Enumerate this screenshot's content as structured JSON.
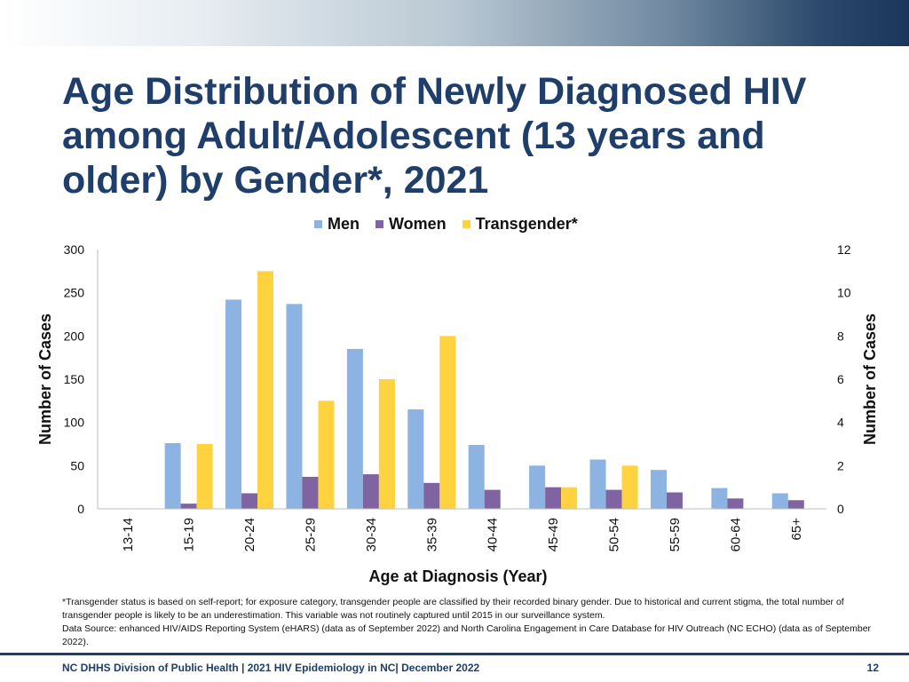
{
  "title": "Age Distribution of Newly Diagnosed HIV among Adult/Adolescent (13 years and older) by Gender*, 2021",
  "footnote": {
    "line1": "*Transgender status is based on self-report; for exposure category, transgender people are classified by their recorded binary gender. Due to historical and current stigma, the total number of transgender people is likely to be an underestimation. This variable was not routinely captured until 2015 in our surveillance system.",
    "line2": "Data Source: enhanced HIV/AIDS Reporting System (eHARS) (data as of September 2022) and North Carolina Engagement in Care Database for HIV Outreach (NC ECHO) (data as of September 2022)."
  },
  "footer": {
    "text": "NC DHHS Division of Public Health | 2021 HIV Epidemiology in NC| December 2022",
    "page_number": "12"
  },
  "colors": {
    "title": "#1f3e69",
    "men": "#8db3e2",
    "women": "#8064a2",
    "transgender": "#ffd33f",
    "axis": "#bfbfbf"
  },
  "chart_data": {
    "type": "bar",
    "title": "",
    "xlabel": "Age at Diagnosis (Year)",
    "ylabel": "Number of Cases",
    "y2label": "Number of Cases",
    "categories": [
      "13-14",
      "15-19",
      "20-24",
      "25-29",
      "30-34",
      "35-39",
      "40-44",
      "45-49",
      "50-54",
      "55-59",
      "60-64",
      "65+"
    ],
    "ylim": [
      0,
      300
    ],
    "y2lim": [
      0,
      12
    ],
    "yticks": [
      "0",
      "50",
      "100",
      "150",
      "200",
      "250",
      "300"
    ],
    "y2ticks": [
      "0",
      "2",
      "4",
      "6",
      "8",
      "10",
      "12"
    ],
    "legend_position": "top-center",
    "series": [
      {
        "name": "Men",
        "axis": "left",
        "values": [
          0,
          76,
          242,
          237,
          185,
          115,
          74,
          50,
          57,
          45,
          24,
          18
        ]
      },
      {
        "name": "Women",
        "axis": "left",
        "values": [
          0,
          6,
          18,
          37,
          40,
          30,
          22,
          25,
          22,
          19,
          12,
          10
        ]
      },
      {
        "name": "Transgender*",
        "axis": "right",
        "values": [
          0,
          3,
          11,
          5,
          6,
          8,
          0,
          1,
          2,
          0,
          0,
          0
        ]
      }
    ]
  }
}
